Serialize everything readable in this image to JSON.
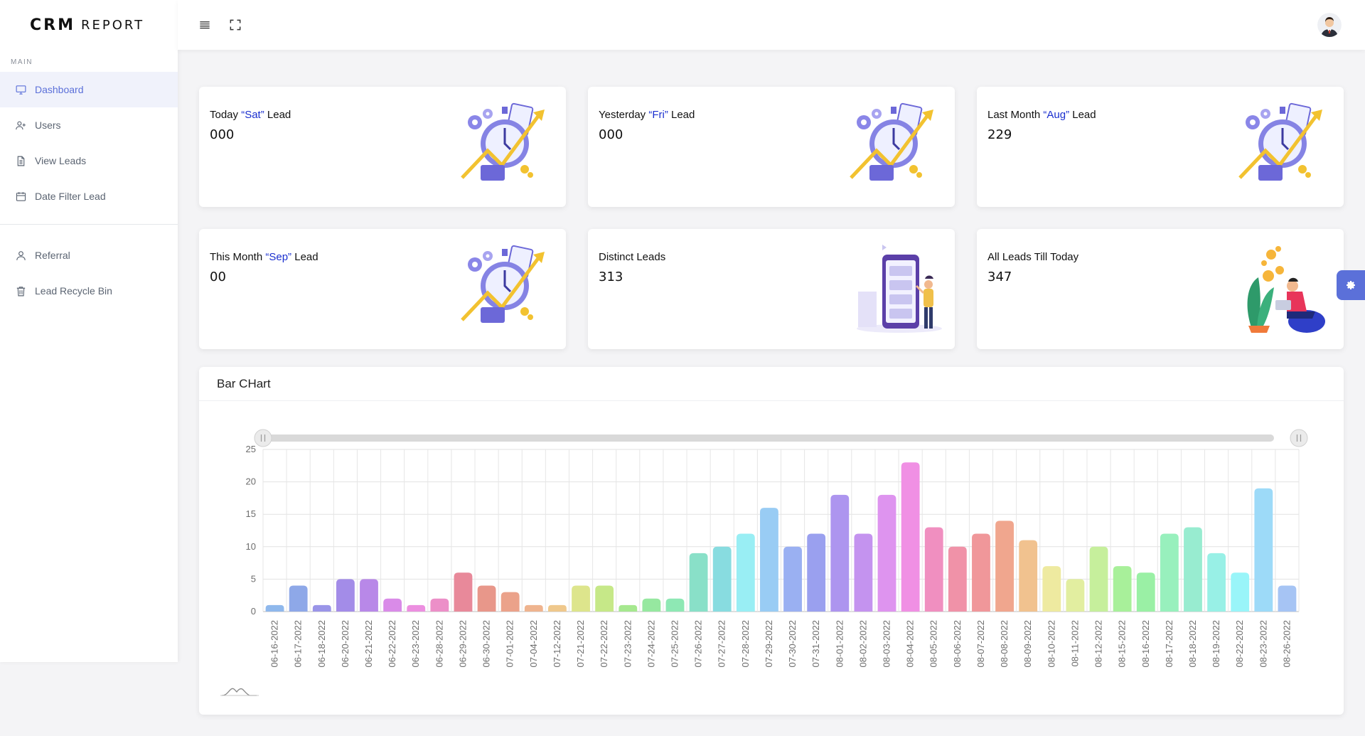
{
  "brand": {
    "part1": "CRM",
    "part2": "REPORT"
  },
  "sidebar": {
    "section_title": "MAIN",
    "items": [
      {
        "label": "Dashboard",
        "icon": "monitor-icon",
        "active": true
      },
      {
        "label": "Users",
        "icon": "user-plus-icon"
      },
      {
        "label": "View Leads",
        "icon": "document-icon"
      },
      {
        "label": "Date Filter Lead",
        "icon": "calendar-icon"
      }
    ],
    "items2": [
      {
        "label": "Referral",
        "icon": "user-icon"
      },
      {
        "label": "Lead Recycle Bin",
        "icon": "trash-icon"
      }
    ]
  },
  "topbar": {
    "menu_icon": "hamburger-icon",
    "fullscreen_icon": "fullscreen-icon",
    "avatar_icon": "user-avatar-icon"
  },
  "cards": [
    {
      "pre": "Today ",
      "highlight": "“Sat”",
      "post": " Lead",
      "value": "000",
      "illustration": "stopwatch-illustration"
    },
    {
      "pre": "Yesterday ",
      "highlight": "“Fri”",
      "post": " Lead",
      "value": "000",
      "illustration": "stopwatch-illustration"
    },
    {
      "pre": "Last Month ",
      "highlight": "“Aug”",
      "post": " Lead",
      "value": "229",
      "illustration": "stopwatch-illustration"
    },
    {
      "pre": "This Month ",
      "highlight": "“Sep”",
      "post": " Lead",
      "value": "00",
      "illustration": "stopwatch-illustration"
    },
    {
      "pre": "Distinct Leads",
      "highlight": "",
      "post": "",
      "value": "313",
      "illustration": "phone-person-illustration"
    },
    {
      "pre": "All Leads Till Today",
      "highlight": "",
      "post": "",
      "value": "347",
      "illustration": "person-coins-illustration"
    }
  ],
  "colors": {
    "accent": "#5b70d9",
    "highlight": "#1a2fcf"
  },
  "settings_icon": "gear-icon",
  "chart_title": "Bar CHart",
  "chart_data": {
    "type": "bar",
    "title": "Bar CHart",
    "xlabel": "",
    "ylabel": "",
    "ylim": [
      0,
      25
    ],
    "yticks": [
      0,
      5,
      10,
      15,
      20,
      25
    ],
    "grid": true,
    "categories": [
      "06-16-2022",
      "06-17-2022",
      "06-18-2022",
      "06-20-2022",
      "06-21-2022",
      "06-22-2022",
      "06-23-2022",
      "06-28-2022",
      "06-29-2022",
      "06-30-2022",
      "07-01-2022",
      "07-04-2022",
      "07-12-2022",
      "07-21-2022",
      "07-22-2022",
      "07-23-2022",
      "07-24-2022",
      "07-25-2022",
      "07-26-2022",
      "07-27-2022",
      "07-28-2022",
      "07-29-2022",
      "07-30-2022",
      "07-31-2022",
      "08-01-2022",
      "08-02-2022",
      "08-03-2022",
      "08-04-2022",
      "08-05-2022",
      "08-06-2022",
      "08-07-2022",
      "08-08-2022",
      "08-09-2022",
      "08-10-2022",
      "08-11-2022",
      "08-12-2022",
      "08-15-2022",
      "08-16-2022",
      "08-17-2022",
      "08-18-2022",
      "08-19-2022",
      "08-22-2022",
      "08-23-2022",
      "08-26-2022"
    ],
    "values": [
      1,
      4,
      1,
      5,
      5,
      2,
      1,
      2,
      6,
      4,
      3,
      1,
      1,
      4,
      4,
      1,
      2,
      2,
      9,
      10,
      12,
      16,
      10,
      12,
      18,
      12,
      18,
      23,
      13,
      10,
      12,
      14,
      11,
      7,
      5,
      10,
      7,
      6,
      12,
      13,
      9,
      6,
      19,
      4
    ],
    "colors": [
      "#8fb8ec",
      "#8ea8e8",
      "#9a95e8",
      "#a38ce8",
      "#b888e8",
      "#d98be8",
      "#ec8fe0",
      "#ec8fc8",
      "#e8899a",
      "#e8978a",
      "#eba28a",
      "#efb48f",
      "#efc88c",
      "#dde58c",
      "#c6e888",
      "#a6e88f",
      "#96e8a0",
      "#8ee8b4",
      "#89e0c8",
      "#88dce0",
      "#99eef4",
      "#99ccf4",
      "#9ab0f2",
      "#9aa0ef",
      "#ad95ef",
      "#c493ef",
      "#de94ef",
      "#f090e4",
      "#f08fc0",
      "#f092a8",
      "#f0979a",
      "#f0a68e",
      "#f1c28f",
      "#eeeaa0",
      "#e2eea0",
      "#c6ef9c",
      "#a8f09a",
      "#9af0a5",
      "#98f0bd",
      "#98ecd0",
      "#98f0e6",
      "#99f5f9",
      "#9ddaf8",
      "#a6c4f4"
    ]
  }
}
